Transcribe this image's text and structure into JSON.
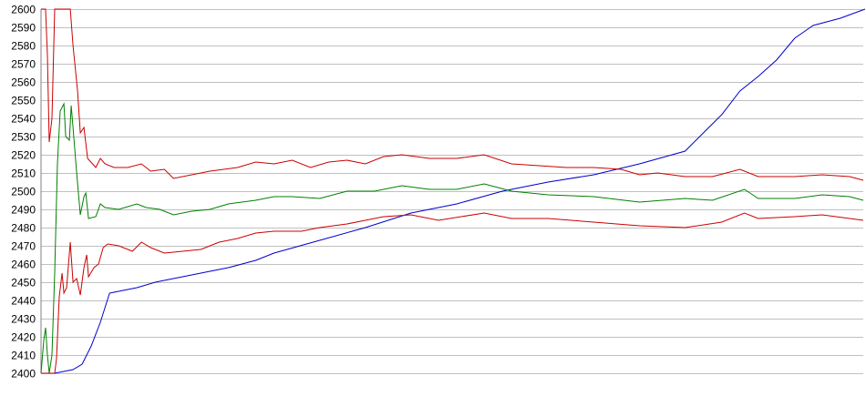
{
  "chart_data": {
    "type": "line",
    "title": "",
    "xlabel": "",
    "ylabel": "",
    "ylim": [
      2400,
      2600
    ],
    "xlim": [
      0,
      900
    ],
    "yticks": [
      "2400",
      "2410",
      "2420",
      "2430",
      "2440",
      "2450",
      "2460",
      "2470",
      "2480",
      "2490",
      "2500",
      "2510",
      "2520",
      "2530",
      "2540",
      "2550",
      "2560",
      "2570",
      "2580",
      "2590",
      "2600"
    ],
    "grid": true,
    "legend": "none",
    "series": [
      {
        "color": "#0000cc",
        "points": [
          [
            0,
            2400
          ],
          [
            15,
            2400
          ],
          [
            25,
            2401
          ],
          [
            35,
            2402
          ],
          [
            45,
            2405
          ],
          [
            55,
            2415
          ],
          [
            65,
            2428
          ],
          [
            75,
            2444
          ],
          [
            85,
            2445
          ],
          [
            105,
            2447
          ],
          [
            125,
            2450
          ],
          [
            155,
            2453
          ],
          [
            205,
            2458
          ],
          [
            235,
            2462
          ],
          [
            255,
            2466
          ],
          [
            305,
            2473
          ],
          [
            355,
            2480
          ],
          [
            405,
            2488
          ],
          [
            455,
            2493
          ],
          [
            505,
            2500
          ],
          [
            555,
            2505
          ],
          [
            605,
            2509
          ],
          [
            655,
            2515
          ],
          [
            705,
            2522
          ],
          [
            725,
            2532
          ],
          [
            745,
            2542
          ],
          [
            765,
            2555
          ],
          [
            785,
            2563
          ],
          [
            805,
            2572
          ],
          [
            825,
            2584
          ],
          [
            845,
            2591
          ],
          [
            875,
            2595
          ],
          [
            902,
            2600
          ]
        ]
      },
      {
        "color": "#cc0000",
        "points": [
          [
            0,
            2600
          ],
          [
            5,
            2600
          ],
          [
            7,
            2575
          ],
          [
            9,
            2527
          ],
          [
            12,
            2540
          ],
          [
            15,
            2600
          ],
          [
            32,
            2600
          ],
          [
            35,
            2580
          ],
          [
            40,
            2555
          ],
          [
            43,
            2532
          ],
          [
            47,
            2535
          ],
          [
            51,
            2518
          ],
          [
            60,
            2513
          ],
          [
            65,
            2518
          ],
          [
            70,
            2515
          ],
          [
            80,
            2513
          ],
          [
            95,
            2513
          ],
          [
            110,
            2515
          ],
          [
            120,
            2511
          ],
          [
            135,
            2512
          ],
          [
            145,
            2507
          ],
          [
            165,
            2509
          ],
          [
            185,
            2511
          ],
          [
            215,
            2513
          ],
          [
            235,
            2516
          ],
          [
            255,
            2515
          ],
          [
            275,
            2517
          ],
          [
            295,
            2513
          ],
          [
            315,
            2516
          ],
          [
            335,
            2517
          ],
          [
            355,
            2515
          ],
          [
            375,
            2519
          ],
          [
            395,
            2520
          ],
          [
            425,
            2518
          ],
          [
            455,
            2518
          ],
          [
            485,
            2520
          ],
          [
            515,
            2515
          ],
          [
            545,
            2514
          ],
          [
            575,
            2513
          ],
          [
            605,
            2513
          ],
          [
            635,
            2512
          ],
          [
            655,
            2509
          ],
          [
            675,
            2510
          ],
          [
            705,
            2508
          ],
          [
            735,
            2508
          ],
          [
            765,
            2512
          ],
          [
            785,
            2508
          ],
          [
            825,
            2508
          ],
          [
            855,
            2509
          ],
          [
            885,
            2508
          ],
          [
            900,
            2506
          ]
        ]
      },
      {
        "color": "#008000",
        "points": [
          [
            0,
            2400
          ],
          [
            3,
            2418
          ],
          [
            5,
            2425
          ],
          [
            7,
            2410
          ],
          [
            9,
            2400
          ],
          [
            12,
            2410
          ],
          [
            15,
            2455
          ],
          [
            18,
            2515
          ],
          [
            21,
            2544
          ],
          [
            25,
            2548
          ],
          [
            27,
            2530
          ],
          [
            31,
            2528
          ],
          [
            33,
            2547
          ],
          [
            35,
            2535
          ],
          [
            39,
            2510
          ],
          [
            43,
            2487
          ],
          [
            47,
            2497
          ],
          [
            49,
            2499
          ],
          [
            52,
            2485
          ],
          [
            60,
            2486
          ],
          [
            65,
            2493
          ],
          [
            70,
            2491
          ],
          [
            85,
            2490
          ],
          [
            105,
            2493
          ],
          [
            115,
            2491
          ],
          [
            130,
            2490
          ],
          [
            145,
            2487
          ],
          [
            165,
            2489
          ],
          [
            185,
            2490
          ],
          [
            205,
            2493
          ],
          [
            235,
            2495
          ],
          [
            255,
            2497
          ],
          [
            275,
            2497
          ],
          [
            305,
            2496
          ],
          [
            335,
            2500
          ],
          [
            365,
            2500
          ],
          [
            395,
            2503
          ],
          [
            425,
            2501
          ],
          [
            455,
            2501
          ],
          [
            485,
            2504
          ],
          [
            515,
            2500
          ],
          [
            555,
            2498
          ],
          [
            605,
            2497
          ],
          [
            655,
            2494
          ],
          [
            705,
            2496
          ],
          [
            735,
            2495
          ],
          [
            770,
            2501
          ],
          [
            785,
            2496
          ],
          [
            825,
            2496
          ],
          [
            855,
            2498
          ],
          [
            885,
            2497
          ],
          [
            900,
            2495
          ]
        ]
      },
      {
        "color": "#cc0000",
        "points": [
          [
            0,
            2400
          ],
          [
            15,
            2400
          ],
          [
            17,
            2408
          ],
          [
            20,
            2442
          ],
          [
            23,
            2455
          ],
          [
            25,
            2444
          ],
          [
            28,
            2447
          ],
          [
            32,
            2472
          ],
          [
            35,
            2450
          ],
          [
            39,
            2452
          ],
          [
            43,
            2443
          ],
          [
            47,
            2458
          ],
          [
            50,
            2465
          ],
          [
            52,
            2453
          ],
          [
            58,
            2458
          ],
          [
            63,
            2460
          ],
          [
            68,
            2469
          ],
          [
            73,
            2471
          ],
          [
            85,
            2470
          ],
          [
            100,
            2467
          ],
          [
            110,
            2472
          ],
          [
            120,
            2469
          ],
          [
            135,
            2466
          ],
          [
            155,
            2467
          ],
          [
            175,
            2468
          ],
          [
            195,
            2472
          ],
          [
            215,
            2474
          ],
          [
            235,
            2477
          ],
          [
            255,
            2478
          ],
          [
            285,
            2478
          ],
          [
            305,
            2480
          ],
          [
            335,
            2482
          ],
          [
            355,
            2484
          ],
          [
            375,
            2486
          ],
          [
            405,
            2487
          ],
          [
            435,
            2484
          ],
          [
            485,
            2488
          ],
          [
            515,
            2485
          ],
          [
            555,
            2485
          ],
          [
            605,
            2483
          ],
          [
            655,
            2481
          ],
          [
            705,
            2480
          ],
          [
            745,
            2483
          ],
          [
            770,
            2488
          ],
          [
            785,
            2485
          ],
          [
            825,
            2486
          ],
          [
            855,
            2487
          ],
          [
            900,
            2484
          ]
        ]
      }
    ]
  }
}
